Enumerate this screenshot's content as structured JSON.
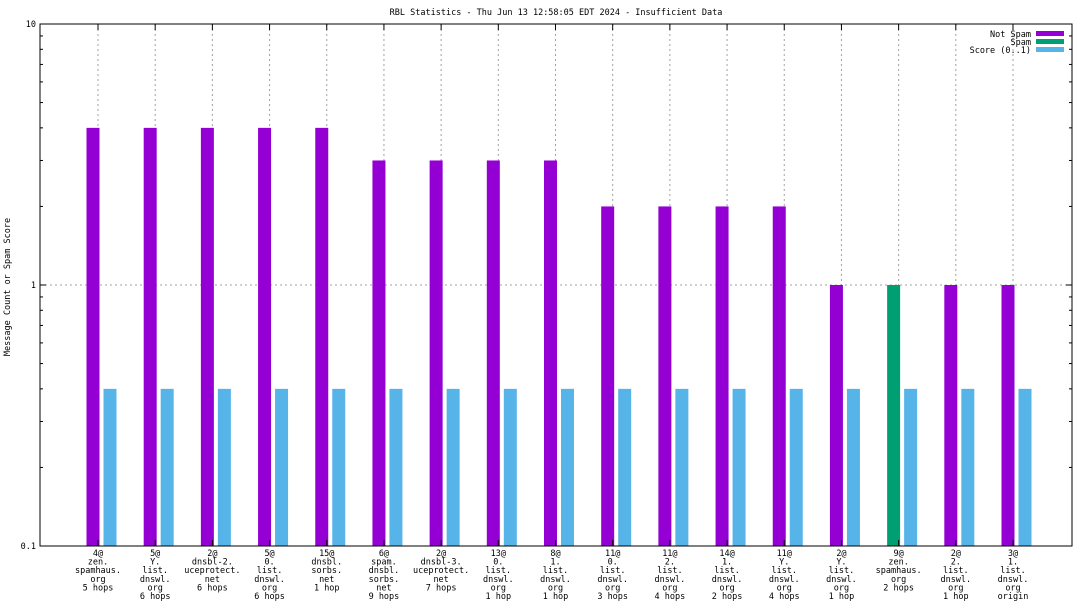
{
  "chart_data": {
    "type": "bar",
    "title": "RBL Statistics - Thu Jun 13 12:58:05 EDT 2024 - Insufficient Data",
    "xlabel": "",
    "ylabel": "Message Count or Spam Score",
    "yscale": "log",
    "ylim": [
      0.1,
      10
    ],
    "yticks": [
      {
        "value": 0.1,
        "label": "0.1"
      },
      {
        "value": 1,
        "label": "1"
      },
      {
        "value": 10,
        "label": "10"
      }
    ],
    "grid": true,
    "legend_position": "top-right",
    "categories": [
      [
        "4@",
        "zen.",
        "spamhaus.",
        "org",
        "5 hops"
      ],
      [
        "5@",
        "Y.",
        "list.",
        "dnswl.",
        "org",
        "6 hops"
      ],
      [
        "2@",
        "dnsbl-2.",
        "uceprotect.",
        "net",
        "6 hops"
      ],
      [
        "5@",
        "0.",
        "list.",
        "dnswl.",
        "org",
        "6 hops"
      ],
      [
        "15@",
        "dnsbl.",
        "sorbs.",
        "net",
        "1 hop"
      ],
      [
        "6@",
        "spam.",
        "dnsbl.",
        "sorbs.",
        "net",
        "9 hops"
      ],
      [
        "2@",
        "dnsbl-3.",
        "uceprotect.",
        "net",
        "7 hops"
      ],
      [
        "13@",
        "0.",
        "list.",
        "dnswl.",
        "org",
        "1 hop"
      ],
      [
        "8@",
        "1.",
        "list.",
        "dnswl.",
        "org",
        "1 hop"
      ],
      [
        "11@",
        "0.",
        "list.",
        "dnswl.",
        "org",
        "3 hops"
      ],
      [
        "11@",
        "2.",
        "list.",
        "dnswl.",
        "org",
        "4 hops"
      ],
      [
        "14@",
        "1.",
        "list.",
        "dnswl.",
        "org",
        "2 hops"
      ],
      [
        "11@",
        "Y.",
        "list.",
        "dnswl.",
        "org",
        "4 hops"
      ],
      [
        "2@",
        "Y.",
        "list.",
        "dnswl.",
        "org",
        "1 hop"
      ],
      [
        "9@",
        "zen.",
        "spamhaus.",
        "org",
        "2 hops"
      ],
      [
        "2@",
        "2.",
        "list.",
        "dnswl.",
        "org",
        "1 hop"
      ],
      [
        "3@",
        "1.",
        "list.",
        "dnswl.",
        "org",
        "origin"
      ]
    ],
    "series": [
      {
        "name": "Not Spam",
        "color": "#9400d3",
        "values": [
          4,
          4,
          4,
          4,
          4,
          3,
          3,
          3,
          3,
          2,
          2,
          2,
          2,
          1,
          0,
          1,
          1
        ]
      },
      {
        "name": "Spam",
        "color": "#009e73",
        "values": [
          0,
          0,
          0,
          0,
          0,
          0,
          0,
          0,
          0,
          0,
          0,
          0,
          0,
          0,
          1,
          0,
          0
        ]
      },
      {
        "name": "Score (0..1)",
        "color": "#56b4e9",
        "values": [
          0.4,
          0.4,
          0.4,
          0.4,
          0.4,
          0.4,
          0.4,
          0.4,
          0.4,
          0.4,
          0.4,
          0.4,
          0.4,
          0.4,
          0.4,
          0.4,
          0.4
        ]
      }
    ]
  }
}
